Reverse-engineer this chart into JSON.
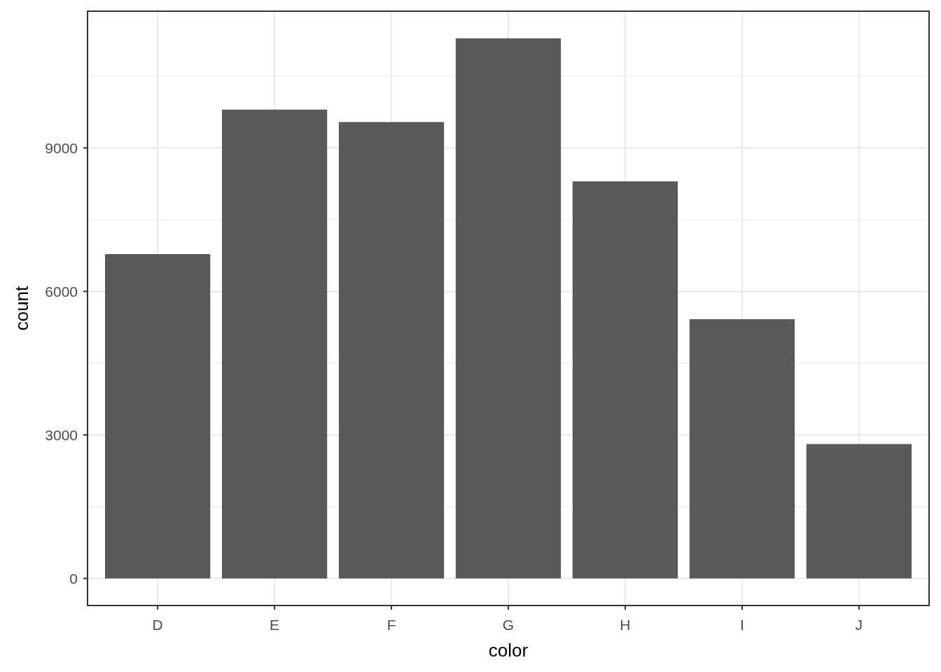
{
  "chart_data": {
    "type": "bar",
    "xlabel": "color",
    "ylabel": "count",
    "categories": [
      "D",
      "E",
      "F",
      "G",
      "H",
      "I",
      "J"
    ],
    "values": [
      6780,
      9800,
      9540,
      11290,
      8300,
      5420,
      2810
    ],
    "color": "#595959",
    "ylim": [
      -565,
      11857
    ],
    "yticks": [
      0,
      {
        "value": 1500,
        "label": null
      },
      3000,
      {
        "value": 4500,
        "label": null
      },
      6000,
      {
        "value": 7500,
        "label": null
      },
      9000,
      {
        "value": 10500,
        "label": null
      }
    ],
    "grid": true
  }
}
